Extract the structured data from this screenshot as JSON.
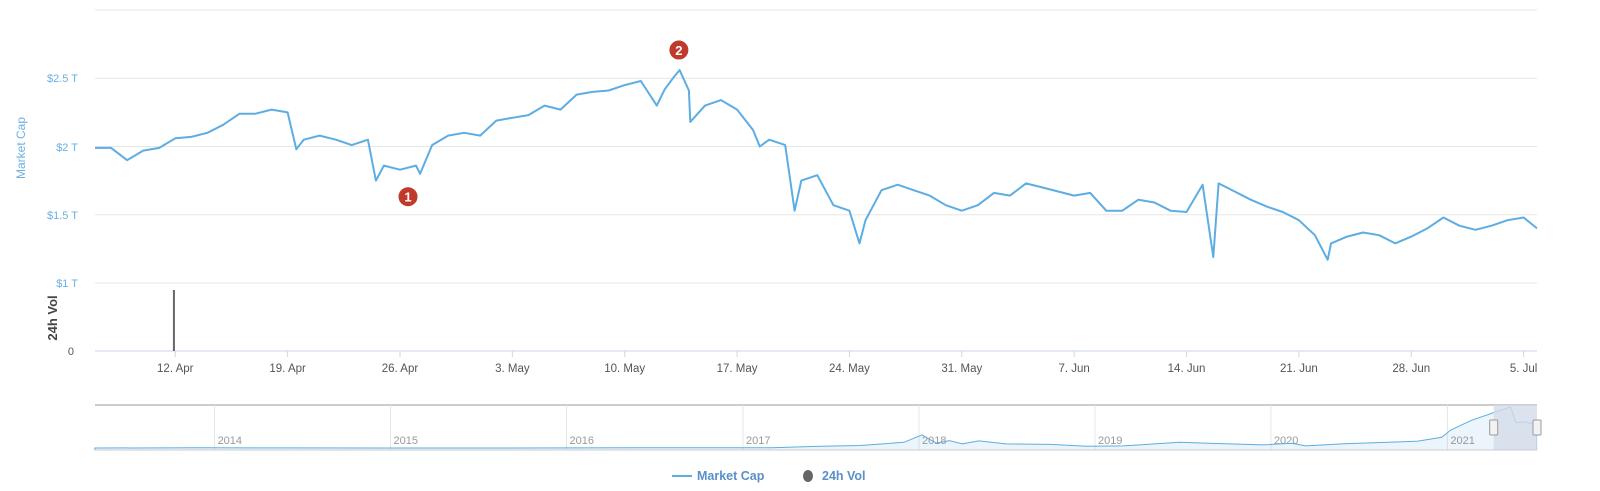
{
  "chart_data": {
    "type": "line",
    "yaxis_label": "Market Cap",
    "volume_axis_label": "24h Vol",
    "y_ticks": [
      "$1 T",
      "$1.5 T",
      "$2 T",
      "$2.5 T"
    ],
    "y_tick_values": [
      1,
      1.5,
      2,
      2.5
    ],
    "ylim": [
      1,
      3
    ],
    "volume_tick": "0",
    "x_ticks": [
      "12. Apr",
      "19. Apr",
      "26. Apr",
      "3. May",
      "10. May",
      "17. May",
      "24. May",
      "31. May",
      "7. Jun",
      "14. Jun",
      "21. Jun",
      "28. Jun",
      "5. Jul"
    ],
    "x_tick_dates": [
      "2021-04-12",
      "2021-04-19",
      "2021-04-26",
      "2021-05-03",
      "2021-05-10",
      "2021-05-17",
      "2021-05-24",
      "2021-05-31",
      "2021-06-07",
      "2021-06-14",
      "2021-06-21",
      "2021-06-28",
      "2021-07-05"
    ],
    "xlim": [
      "2021-04-07",
      "2021-07-05T20:00"
    ],
    "grid": true,
    "series": [
      {
        "name": "Market Cap",
        "unit": "T USD",
        "color": "#5dade2",
        "points": [
          [
            "2021-04-07",
            1.99
          ],
          [
            "2021-04-08",
            1.99
          ],
          [
            "2021-04-09",
            1.9
          ],
          [
            "2021-04-10",
            1.97
          ],
          [
            "2021-04-11",
            1.99
          ],
          [
            "2021-04-12",
            2.06
          ],
          [
            "2021-04-13",
            2.07
          ],
          [
            "2021-04-14",
            2.1
          ],
          [
            "2021-04-15",
            2.16
          ],
          [
            "2021-04-16",
            2.24
          ],
          [
            "2021-04-17",
            2.24
          ],
          [
            "2021-04-18",
            2.27
          ],
          [
            "2021-04-19",
            2.25
          ],
          [
            "2021-04-19T13:00",
            1.98
          ],
          [
            "2021-04-20",
            2.05
          ],
          [
            "2021-04-21",
            2.08
          ],
          [
            "2021-04-22",
            2.05
          ],
          [
            "2021-04-23",
            2.01
          ],
          [
            "2021-04-24",
            2.05
          ],
          [
            "2021-04-24T12:00",
            1.75
          ],
          [
            "2021-04-25",
            1.86
          ],
          [
            "2021-04-26",
            1.83
          ],
          [
            "2021-04-27",
            1.86
          ],
          [
            "2021-04-27T06:00",
            1.8
          ],
          [
            "2021-04-28",
            2.01
          ],
          [
            "2021-04-29",
            2.08
          ],
          [
            "2021-04-30",
            2.1
          ],
          [
            "2021-05-01",
            2.08
          ],
          [
            "2021-05-02",
            2.19
          ],
          [
            "2021-05-03",
            2.21
          ],
          [
            "2021-05-04",
            2.23
          ],
          [
            "2021-05-05",
            2.3
          ],
          [
            "2021-05-06",
            2.27
          ],
          [
            "2021-05-07",
            2.38
          ],
          [
            "2021-05-08",
            2.4
          ],
          [
            "2021-05-09",
            2.41
          ],
          [
            "2021-05-10",
            2.45
          ],
          [
            "2021-05-11",
            2.48
          ],
          [
            "2021-05-12",
            2.3
          ],
          [
            "2021-05-12T12:00",
            2.42
          ],
          [
            "2021-05-13",
            2.5
          ],
          [
            "2021-05-13T10:00",
            2.56
          ],
          [
            "2021-05-14",
            2.41
          ],
          [
            "2021-05-14T02:00",
            2.18
          ],
          [
            "2021-05-15",
            2.3
          ],
          [
            "2021-05-16",
            2.34
          ],
          [
            "2021-05-17",
            2.27
          ],
          [
            "2021-05-18",
            2.12
          ],
          [
            "2021-05-18T10:00",
            2.0
          ],
          [
            "2021-05-19",
            2.05
          ],
          [
            "2021-05-20",
            2.01
          ],
          [
            "2021-05-20T14:00",
            1.53
          ],
          [
            "2021-05-21",
            1.75
          ],
          [
            "2021-05-22",
            1.79
          ],
          [
            "2021-05-23",
            1.57
          ],
          [
            "2021-05-24",
            1.53
          ],
          [
            "2021-05-24T15:00",
            1.29
          ],
          [
            "2021-05-25",
            1.46
          ],
          [
            "2021-05-26",
            1.68
          ],
          [
            "2021-05-27",
            1.72
          ],
          [
            "2021-05-28",
            1.68
          ],
          [
            "2021-05-29",
            1.64
          ],
          [
            "2021-05-30",
            1.57
          ],
          [
            "2021-05-31",
            1.53
          ],
          [
            "2021-06-01",
            1.57
          ],
          [
            "2021-06-02",
            1.66
          ],
          [
            "2021-06-03",
            1.64
          ],
          [
            "2021-06-04",
            1.73
          ],
          [
            "2021-06-05",
            1.7
          ],
          [
            "2021-06-06",
            1.67
          ],
          [
            "2021-06-07",
            1.64
          ],
          [
            "2021-06-08",
            1.66
          ],
          [
            "2021-06-09",
            1.53
          ],
          [
            "2021-06-10",
            1.53
          ],
          [
            "2021-06-11",
            1.61
          ],
          [
            "2021-06-12",
            1.59
          ],
          [
            "2021-06-13",
            1.53
          ],
          [
            "2021-06-14",
            1.52
          ],
          [
            "2021-06-15",
            1.72
          ],
          [
            "2021-06-15T16:00",
            1.19
          ],
          [
            "2021-06-16",
            1.73
          ],
          [
            "2021-06-17",
            1.67
          ],
          [
            "2021-06-18",
            1.61
          ],
          [
            "2021-06-19",
            1.56
          ],
          [
            "2021-06-20",
            1.52
          ],
          [
            "2021-06-21",
            1.46
          ],
          [
            "2021-06-22",
            1.35
          ],
          [
            "2021-06-22T19:00",
            1.17
          ],
          [
            "2021-06-23",
            1.29
          ],
          [
            "2021-06-24",
            1.34
          ],
          [
            "2021-06-25",
            1.37
          ],
          [
            "2021-06-26",
            1.35
          ],
          [
            "2021-06-27",
            1.29
          ],
          [
            "2021-06-28",
            1.34
          ],
          [
            "2021-06-29",
            1.4
          ],
          [
            "2021-06-30",
            1.48
          ],
          [
            "2021-07-01",
            1.42
          ],
          [
            "2021-07-02",
            1.39
          ],
          [
            "2021-07-03",
            1.42
          ],
          [
            "2021-07-04",
            1.46
          ],
          [
            "2021-07-05",
            1.48
          ],
          [
            "2021-07-05T20:00",
            1.4
          ]
        ]
      },
      {
        "name": "24h Vol",
        "color": "#666666",
        "type": "column",
        "points": [
          [
            "2021-04-11T22:00",
            0.9
          ]
        ]
      }
    ],
    "annotations": [
      {
        "label": "1",
        "date": "2021-04-26T12:00",
        "color": "#c0392b"
      },
      {
        "label": "2",
        "date": "2021-05-13T09:00",
        "color": "#c0392b"
      }
    ],
    "navigator": {
      "year_ticks": [
        "2014",
        "2015",
        "2016",
        "2017",
        "2018",
        "2019",
        "2020",
        "2021"
      ],
      "selection_color": "#d5dcea",
      "points": [
        [
          "2013-04-28",
          0.0015
        ],
        [
          "2013-12-01",
          0.012
        ],
        [
          "2014-06-01",
          0.008
        ],
        [
          "2015-06-01",
          0.003
        ],
        [
          "2016-06-01",
          0.01
        ],
        [
          "2017-03-01",
          0.02
        ],
        [
          "2017-06-01",
          0.1
        ],
        [
          "2017-09-01",
          0.15
        ],
        [
          "2017-12-01",
          0.35
        ],
        [
          "2018-01-07",
          0.8
        ],
        [
          "2018-02-06",
          0.3
        ],
        [
          "2018-03-05",
          0.45
        ],
        [
          "2018-04-01",
          0.25
        ],
        [
          "2018-05-05",
          0.43
        ],
        [
          "2018-07-01",
          0.25
        ],
        [
          "2018-10-01",
          0.22
        ],
        [
          "2018-12-15",
          0.11
        ],
        [
          "2019-03-01",
          0.13
        ],
        [
          "2019-06-26",
          0.35
        ],
        [
          "2019-09-01",
          0.28
        ],
        [
          "2019-12-18",
          0.19
        ],
        [
          "2020-02-13",
          0.29
        ],
        [
          "2020-03-13",
          0.13
        ],
        [
          "2020-06-01",
          0.26
        ],
        [
          "2020-09-01",
          0.35
        ],
        [
          "2020-11-01",
          0.42
        ],
        [
          "2020-12-20",
          0.65
        ],
        [
          "2021-01-08",
          1.1
        ],
        [
          "2021-02-21",
          1.7
        ],
        [
          "2021-03-13",
          1.9
        ],
        [
          "2021-04-16",
          2.25
        ],
        [
          "2021-05-12",
          2.5
        ],
        [
          "2021-05-23",
          1.55
        ],
        [
          "2021-06-10",
          1.6
        ],
        [
          "2021-07-05",
          1.4
        ]
      ],
      "range_start": "2013-04-28",
      "range_end": "2021-07-05T20:00",
      "selected": [
        "2021-04-07",
        "2021-07-05T20:00"
      ]
    },
    "legend": {
      "placement": "bottom-center",
      "items": [
        "Market Cap",
        "24h Vol"
      ]
    }
  }
}
